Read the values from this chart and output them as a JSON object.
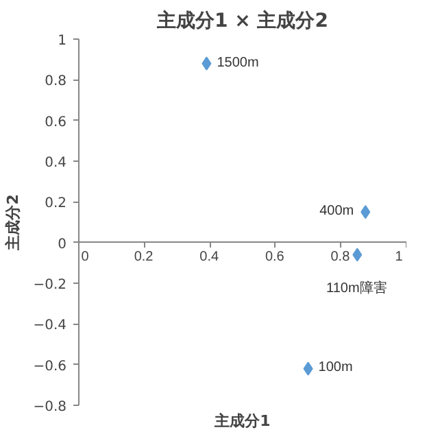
{
  "chart_data": {
    "type": "scatter",
    "title": "主成分1 × 主成分2",
    "xlabel": "主成分1",
    "ylabel": "主成分2",
    "x": [
      0.39,
      0.875,
      0.85,
      0.7
    ],
    "series": [
      {
        "color": "#5b9bd5",
        "values": [
          0.88,
          0.15,
          -0.06,
          -0.62
        ]
      }
    ],
    "annotations": [
      {
        "text": "1500m",
        "x": 0.39,
        "y": 0.88
      },
      {
        "text": "400m",
        "x": 0.875,
        "y": 0.15
      },
      {
        "text": "110m障害",
        "x": 0.85,
        "y": -0.06
      },
      {
        "text": "100m",
        "x": 0.7,
        "y": -0.62
      }
    ],
    "xlim": [
      0,
      1
    ],
    "ylim": [
      -0.8,
      1
    ],
    "xticks": [
      0,
      0.2,
      0.4,
      0.6,
      0.8,
      1
    ],
    "yticks": [
      -0.8,
      -0.6,
      -0.4,
      -0.2,
      0,
      0.2,
      0.4,
      0.6,
      0.8,
      1
    ],
    "marker": "diamond",
    "grid": false
  }
}
